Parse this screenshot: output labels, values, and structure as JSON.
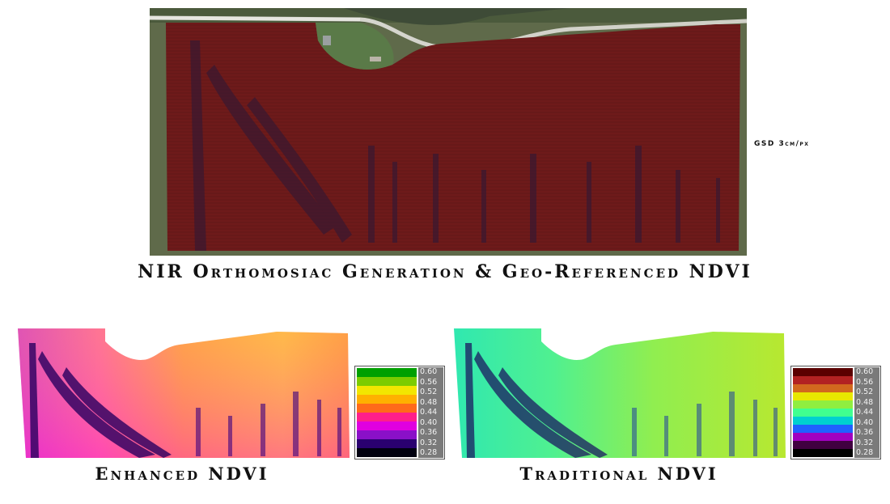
{
  "orthomosaic": {
    "caption": "NIR Orthomosiac Generation & Geo-Referenced NDVI",
    "gsd": "GSD 3cm/px"
  },
  "enhanced": {
    "caption": "Enhanced NDVI",
    "scale_ticks": [
      "0.60",
      "0.56",
      "0.52",
      "0.48",
      "0.44",
      "0.40",
      "0.36",
      "0.32",
      "0.28"
    ],
    "scale_colors": [
      "#00a000",
      "#7ccc00",
      "#f2e600",
      "#ffb000",
      "#ff6a1a",
      "#ff1f8a",
      "#e000e0",
      "#8a10c8",
      "#2a0070",
      "#000010"
    ]
  },
  "traditional": {
    "caption": "Traditional NDVI",
    "scale_ticks": [
      "0.60",
      "0.56",
      "0.52",
      "0.48",
      "0.44",
      "0.40",
      "0.36",
      "0.32",
      "0.28"
    ],
    "scale_colors": [
      "#5a0000",
      "#b22222",
      "#d2691e",
      "#e8e800",
      "#90ee40",
      "#40ff90",
      "#00d0d0",
      "#2060ff",
      "#a000c0",
      "#400040",
      "#000000"
    ]
  }
}
